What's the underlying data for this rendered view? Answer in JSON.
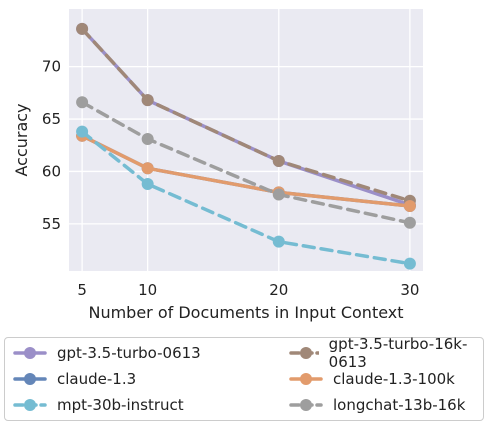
{
  "chart_data": {
    "type": "line",
    "xlabel": "Number of Documents in Input Context",
    "ylabel": "Accuracy",
    "x": [
      5,
      10,
      20,
      30
    ],
    "xticks": [
      5,
      10,
      20,
      30
    ],
    "yticks": [
      55,
      60,
      65,
      70
    ],
    "xlim": [
      4,
      31
    ],
    "ylim": [
      50.5,
      75.5
    ],
    "grid": true,
    "legend_position": "bottom, outside plot, two columns",
    "series": [
      {
        "name": "gpt-3.5-turbo-0613",
        "color": "#9b8fc8",
        "dashed": false,
        "values": [
          73.6,
          66.8,
          61.0,
          56.8
        ]
      },
      {
        "name": "gpt-3.5-turbo-16k-0613",
        "color": "#a08878",
        "dashed": true,
        "values": [
          73.6,
          66.8,
          61.0,
          57.2
        ]
      },
      {
        "name": "claude-1.3",
        "color": "#6486b8",
        "dashed": false,
        "values": [
          63.4,
          60.3,
          58.0,
          56.7
        ]
      },
      {
        "name": "claude-1.3-100k",
        "color": "#e29b6c",
        "dashed": false,
        "values": [
          63.4,
          60.3,
          58.0,
          56.7
        ]
      },
      {
        "name": "mpt-30b-instruct",
        "color": "#75bcd2",
        "dashed": true,
        "values": [
          63.8,
          58.8,
          53.3,
          51.2
        ]
      },
      {
        "name": "longchat-13b-16k",
        "color": "#9e9e9e",
        "dashed": true,
        "values": [
          66.6,
          63.1,
          57.8,
          55.1
        ]
      }
    ]
  }
}
